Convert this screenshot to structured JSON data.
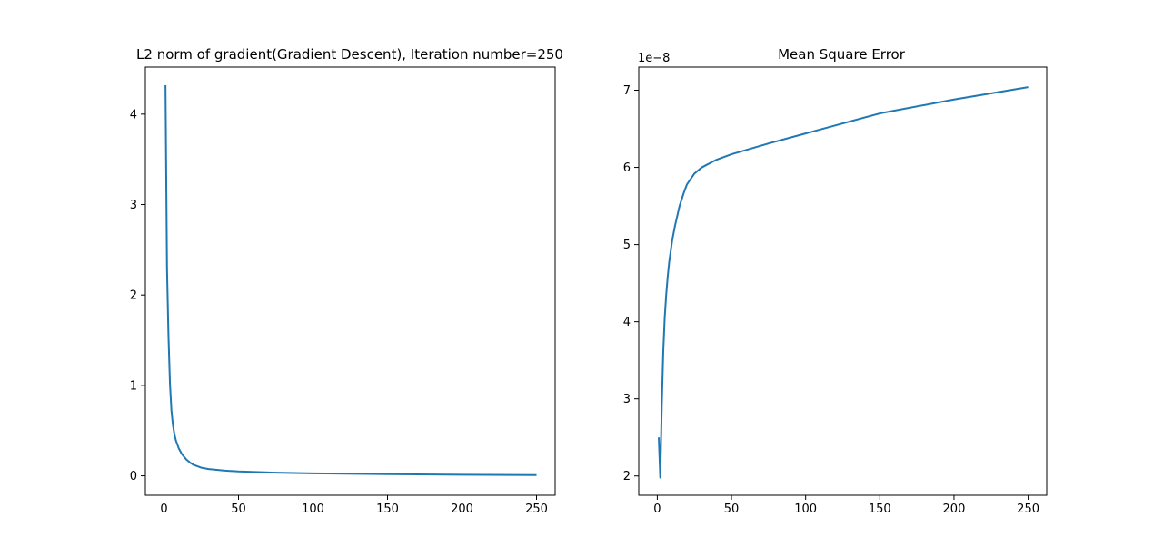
{
  "chart_data": [
    {
      "type": "line",
      "title": "L2 norm of gradient(Gradient Descent), Iteration number=250",
      "xlabel": "",
      "ylabel": "",
      "xlim": [
        -12.5,
        262.5
      ],
      "ylim": [
        -0.215,
        4.52
      ],
      "xticks": [
        0,
        50,
        100,
        150,
        200,
        250
      ],
      "yticks": [
        0,
        1,
        2,
        3,
        4
      ],
      "grid": false,
      "color": "#1f77b4",
      "series": [
        {
          "x": [
            1,
            2,
            3,
            4,
            5,
            6,
            7,
            8,
            10,
            12,
            15,
            18,
            20,
            25,
            30,
            40,
            50,
            75,
            100,
            150,
            200,
            250
          ],
          "y": [
            4.32,
            2.3,
            1.55,
            1.02,
            0.72,
            0.56,
            0.46,
            0.39,
            0.3,
            0.24,
            0.18,
            0.14,
            0.12,
            0.09,
            0.075,
            0.058,
            0.048,
            0.034,
            0.027,
            0.018,
            0.012,
            0.008
          ]
        }
      ]
    },
    {
      "type": "line",
      "title": "Mean Square Error",
      "xlabel": "",
      "ylabel": "",
      "y_offset_label": "1e−8",
      "xlim": [
        -12.5,
        262.5
      ],
      "ylim": [
        1.75,
        7.3
      ],
      "xticks": [
        0,
        50,
        100,
        150,
        200,
        250
      ],
      "yticks": [
        2,
        3,
        4,
        5,
        6,
        7
      ],
      "grid": false,
      "color": "#1f77b4",
      "series": [
        {
          "x": [
            1,
            2,
            3,
            4,
            5,
            6,
            7,
            8,
            10,
            12,
            15,
            18,
            20,
            25,
            30,
            40,
            50,
            75,
            100,
            150,
            200,
            250
          ],
          "y": [
            2.5,
            1.98,
            2.9,
            3.6,
            4.05,
            4.35,
            4.58,
            4.77,
            5.05,
            5.25,
            5.5,
            5.68,
            5.78,
            5.92,
            6.0,
            6.1,
            6.17,
            6.31,
            6.44,
            6.7,
            6.88,
            7.04
          ]
        }
      ]
    }
  ]
}
